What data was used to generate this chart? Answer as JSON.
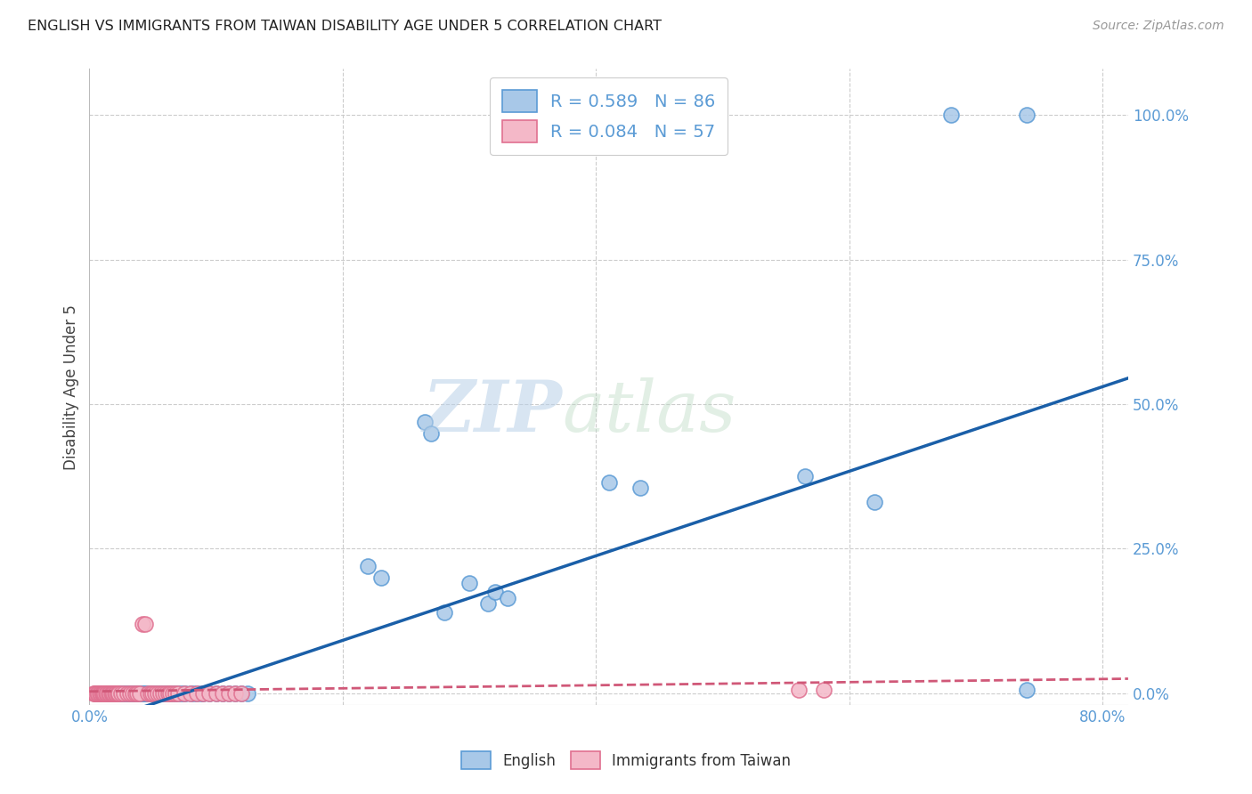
{
  "title": "ENGLISH VS IMMIGRANTS FROM TAIWAN DISABILITY AGE UNDER 5 CORRELATION CHART",
  "source": "Source: ZipAtlas.com",
  "ylabel": "Disability Age Under 5",
  "xlim": [
    0.0,
    0.82
  ],
  "ylim": [
    -0.02,
    1.08
  ],
  "ytick_vals": [
    0.0,
    0.25,
    0.5,
    0.75,
    1.0
  ],
  "ytick_labels": [
    "0.0%",
    "25.0%",
    "50.0%",
    "75.0%",
    "100.0%"
  ],
  "xtick_vals": [
    0.0,
    0.8
  ],
  "xtick_labels": [
    "0.0%",
    "80.0%"
  ],
  "blue_R": 0.589,
  "blue_N": 86,
  "pink_R": 0.084,
  "pink_N": 57,
  "blue_color": "#a8c8e8",
  "blue_edge": "#5b9bd5",
  "pink_color": "#f4b8c8",
  "pink_edge": "#e07090",
  "blue_line_color": "#1a5fa8",
  "pink_line_color": "#d05878",
  "background": "#ffffff",
  "grid_color": "#cccccc",
  "blue_scatter_x": [
    0.005,
    0.007,
    0.008,
    0.009,
    0.01,
    0.01,
    0.011,
    0.012,
    0.012,
    0.013,
    0.014,
    0.015,
    0.015,
    0.016,
    0.017,
    0.018,
    0.019,
    0.02,
    0.02,
    0.021,
    0.022,
    0.023,
    0.025,
    0.026,
    0.027,
    0.028,
    0.03,
    0.031,
    0.032,
    0.033,
    0.034,
    0.035,
    0.036,
    0.037,
    0.038,
    0.04,
    0.041,
    0.042,
    0.043,
    0.044,
    0.045,
    0.046,
    0.047,
    0.048,
    0.05,
    0.052,
    0.054,
    0.056,
    0.058,
    0.06,
    0.062,
    0.064,
    0.066,
    0.068,
    0.07,
    0.072,
    0.074,
    0.076,
    0.08,
    0.082,
    0.085,
    0.088,
    0.09,
    0.095,
    0.1,
    0.105,
    0.11,
    0.115,
    0.12,
    0.125,
    0.22,
    0.23,
    0.265,
    0.27,
    0.28,
    0.3,
    0.315,
    0.32,
    0.33,
    0.41,
    0.435,
    0.565,
    0.62,
    0.68,
    0.74,
    0.74
  ],
  "blue_scatter_y": [
    0.0,
    0.0,
    0.0,
    0.0,
    0.0,
    0.0,
    0.0,
    0.0,
    0.0,
    0.0,
    0.0,
    0.0,
    0.0,
    0.0,
    0.0,
    0.0,
    0.0,
    0.0,
    0.0,
    0.0,
    0.0,
    0.0,
    0.0,
    0.0,
    0.0,
    0.0,
    0.0,
    0.0,
    0.0,
    0.0,
    0.0,
    0.0,
    0.0,
    0.0,
    0.0,
    0.0,
    0.0,
    0.0,
    0.0,
    0.0,
    0.0,
    0.0,
    0.0,
    0.0,
    0.0,
    0.0,
    0.0,
    0.0,
    0.0,
    0.0,
    0.0,
    0.0,
    0.0,
    0.0,
    0.0,
    0.0,
    0.0,
    0.0,
    0.0,
    0.0,
    0.0,
    0.0,
    0.0,
    0.0,
    0.0,
    0.0,
    0.0,
    0.0,
    0.0,
    0.0,
    0.22,
    0.2,
    0.47,
    0.45,
    0.14,
    0.19,
    0.155,
    0.175,
    0.165,
    0.365,
    0.355,
    0.375,
    0.33,
    1.0,
    1.0,
    0.005
  ],
  "pink_scatter_x": [
    0.003,
    0.004,
    0.005,
    0.006,
    0.007,
    0.008,
    0.009,
    0.01,
    0.01,
    0.011,
    0.012,
    0.013,
    0.014,
    0.015,
    0.016,
    0.017,
    0.018,
    0.019,
    0.02,
    0.021,
    0.022,
    0.023,
    0.025,
    0.027,
    0.03,
    0.032,
    0.034,
    0.036,
    0.038,
    0.04,
    0.042,
    0.044,
    0.046,
    0.048,
    0.05,
    0.052,
    0.054,
    0.056,
    0.058,
    0.06,
    0.062,
    0.064,
    0.066,
    0.068,
    0.07,
    0.075,
    0.08,
    0.085,
    0.09,
    0.095,
    0.1,
    0.105,
    0.11,
    0.115,
    0.12,
    0.56,
    0.58
  ],
  "pink_scatter_y": [
    0.0,
    0.0,
    0.0,
    0.0,
    0.0,
    0.0,
    0.0,
    0.0,
    0.0,
    0.0,
    0.0,
    0.0,
    0.0,
    0.0,
    0.0,
    0.0,
    0.0,
    0.0,
    0.0,
    0.0,
    0.0,
    0.0,
    0.0,
    0.0,
    0.0,
    0.0,
    0.0,
    0.0,
    0.0,
    0.0,
    0.12,
    0.12,
    0.0,
    0.0,
    0.0,
    0.0,
    0.0,
    0.0,
    0.0,
    0.0,
    0.0,
    0.0,
    0.0,
    0.0,
    0.0,
    0.0,
    0.0,
    0.0,
    0.0,
    0.0,
    0.0,
    0.0,
    0.0,
    0.0,
    0.0,
    0.005,
    0.005
  ],
  "blue_line_x": [
    0.0,
    0.82
  ],
  "blue_line_y": [
    -0.055,
    0.545
  ],
  "pink_line_x": [
    0.0,
    0.82
  ],
  "pink_line_y": [
    0.003,
    0.025
  ]
}
